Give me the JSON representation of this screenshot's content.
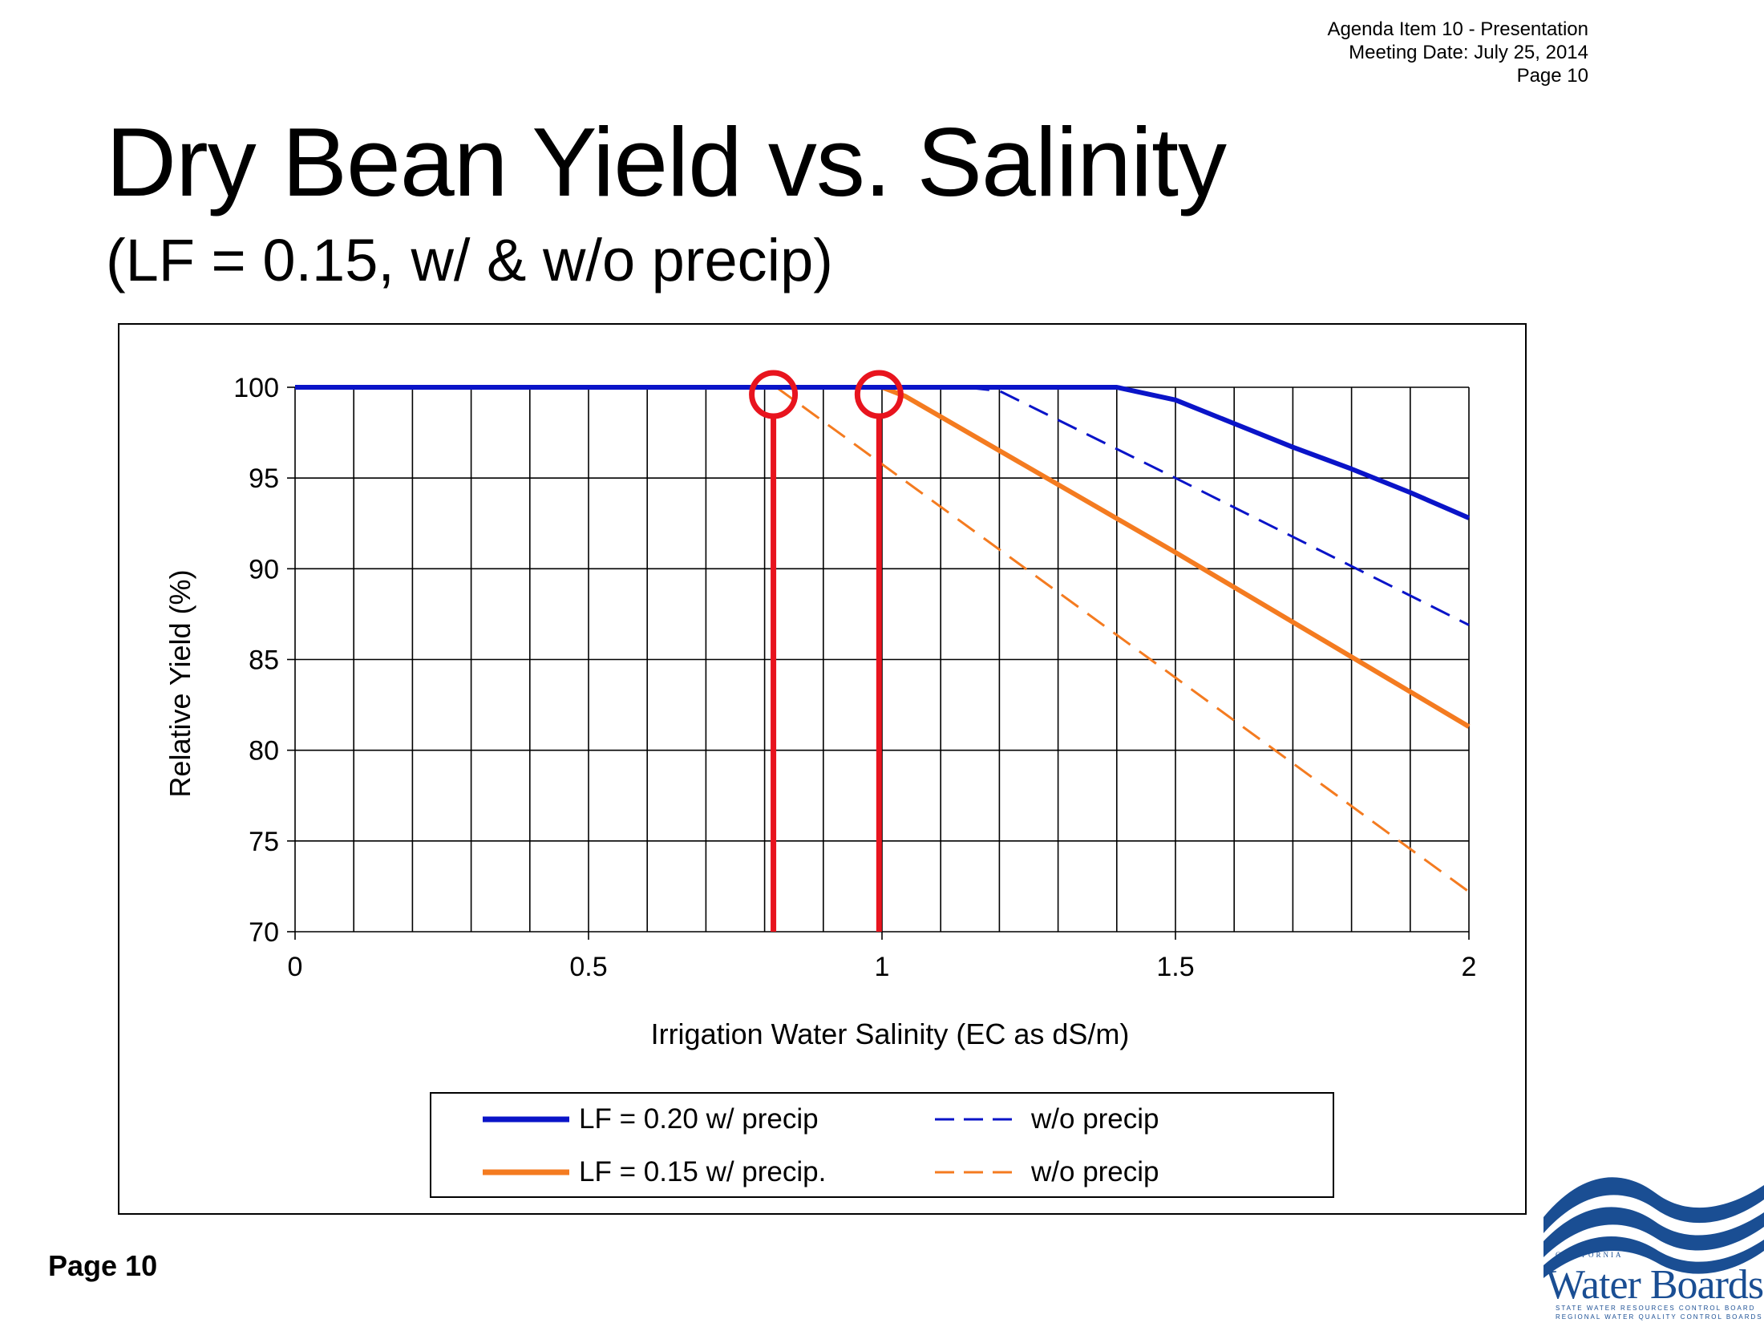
{
  "header": {
    "agenda_item": "Agenda Item 10 - Presentation",
    "meeting_date": "Meeting Date:  July 25, 2014",
    "page": "Page 10"
  },
  "slide": {
    "title": "Dry Bean Yield vs. Salinity",
    "subtitle": "(LF = 0.15, w/ & w/o precip)",
    "footer_page": "Page 10"
  },
  "logo": {
    "caption": "CALIFORNIA",
    "name": "Water Boards",
    "line1": "STATE WATER RESOURCES CONTROL BOARD",
    "line2": "REGIONAL WATER QUALITY CONTROL BOARDS"
  },
  "chart_data": {
    "type": "line",
    "xlabel": "Irrigation  Water Salinity  (EC as dS/m)",
    "ylabel": "Relative  Yield (%)",
    "xlim": [
      0,
      2
    ],
    "ylim": [
      70,
      100
    ],
    "x_ticks": [
      0,
      0.5,
      1,
      1.5,
      2
    ],
    "x_tick_labels": [
      "0",
      "0.5",
      "1",
      "1.5",
      "2"
    ],
    "x_minor_grid_step": 0.1,
    "y_ticks": [
      70,
      75,
      80,
      85,
      90,
      95,
      100
    ],
    "y_tick_labels": [
      "70",
      "75",
      "80",
      "85",
      "90",
      "95",
      "100"
    ],
    "grid": true,
    "legend_position": "bottom",
    "series": [
      {
        "name": "LF = 0.20 w/ precip",
        "color": "#0a14c8",
        "style": "solid",
        "x": [
          0,
          1.4,
          1.5,
          1.6,
          1.7,
          1.8,
          1.9,
          2.0
        ],
        "y": [
          100,
          100,
          99.3,
          98.0,
          96.7,
          95.5,
          94.2,
          92.8
        ]
      },
      {
        "name": "w/o precip",
        "color": "#0a14c8",
        "style": "dashed",
        "x": [
          0,
          1.14,
          1.2,
          1.5,
          2.0
        ],
        "y": [
          100,
          100,
          99.8,
          95.0,
          86.9
        ]
      },
      {
        "name": "LF = 0.15 w/ precip.",
        "color": "#f47b20",
        "style": "solid",
        "x": [
          0,
          1.0,
          1.04,
          1.5,
          2.0
        ],
        "y": [
          100,
          100,
          99.5,
          90.9,
          81.3
        ]
      },
      {
        "name": "w/o precip",
        "color": "#f47b20",
        "style": "dashed",
        "x": [
          0,
          0.82,
          1.5,
          2.0
        ],
        "y": [
          100,
          100,
          84.0,
          72.2
        ]
      }
    ],
    "markers": {
      "color": "#e8141e",
      "vertical_lines_x": [
        0.815,
        0.995
      ],
      "circles_x": [
        0.815,
        0.995
      ],
      "circles_y": 99.6
    }
  }
}
